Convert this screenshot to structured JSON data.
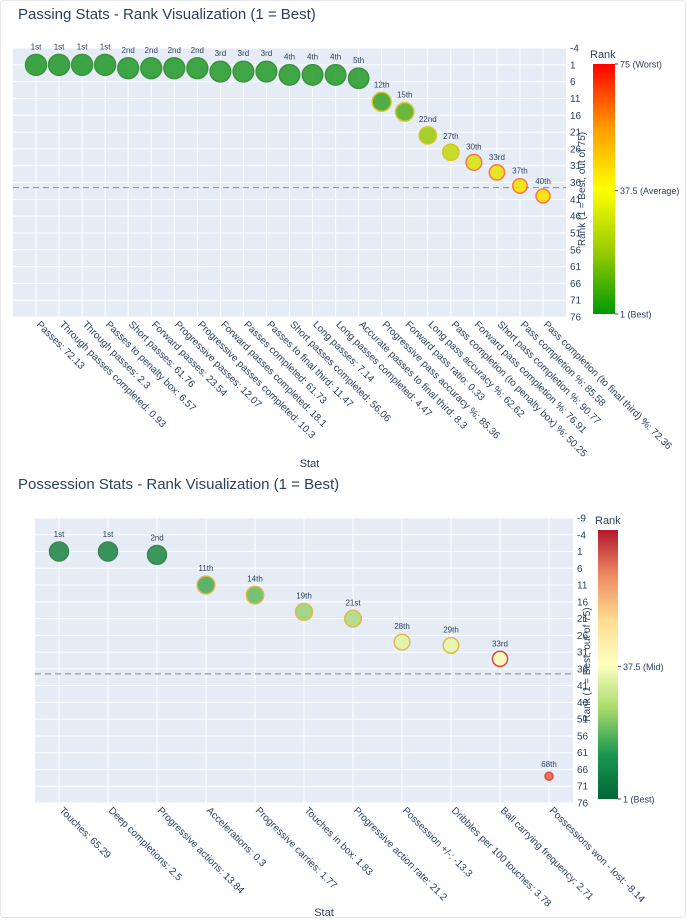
{
  "chart_data": [
    {
      "type": "scatter",
      "title": "Passing Stats - Rank Visualization (1 = Best)",
      "xlabel": "Stat",
      "ylabel": "",
      "ylim": [
        76,
        -4
      ],
      "y_ticks": [
        -4,
        1,
        6,
        11,
        16,
        21,
        26,
        31,
        36,
        41,
        46,
        51,
        56,
        61,
        66,
        71,
        76
      ],
      "average_line": 37.5,
      "grid": true,
      "colorbar": {
        "title": "Rank",
        "axis_title": "Rank (1 = Best, out of 75)",
        "tick_labels": [
          "75 (Worst)",
          "37.5 (Average)",
          "1 (Best)"
        ],
        "tick_values": [
          75,
          37.5,
          1
        ],
        "colors": [
          "#ff0000",
          "#ff9900",
          "#ffff00",
          "#99cc00",
          "#009900"
        ]
      },
      "categories": [
        "Passes: 72.13",
        "Through passes completed: 0.93",
        "Through passes: 2.3",
        "Passes to penalty box: 6.57",
        "Short passes: 61.76",
        "Forward passes: 23.54",
        "Progressive passes: 12.07",
        "Progressive passes completed: 10.3",
        "Forward passes completed: 18.1",
        "Passes completed: 61.73",
        "Passes to final third: 11.47",
        "Short passes completed: 56.06",
        "Long passes: 7.14",
        "Long passes completed: 4.47",
        "Accurate passes to final third: 8.3",
        "Progressive pass accuracy %: 85.36",
        "Forward pass ratio: 0.33",
        "Long pass accuracy %: 62.62",
        "Pass completion (to penalty box) %: 50.25",
        "Forward pass completion %: 76.91",
        "Short pass completion %: 90.77",
        "Pass completion %: 85.58",
        "Pass completion (to final third) %: 72.36"
      ],
      "values": [
        1,
        1,
        1,
        1,
        2,
        2,
        2,
        2,
        3,
        3,
        3,
        4,
        4,
        4,
        5,
        12,
        15,
        22,
        27,
        30,
        33,
        37,
        40
      ],
      "point_labels": [
        "1st",
        "1st",
        "1st",
        "1st",
        "2nd",
        "2nd",
        "2nd",
        "2nd",
        "3rd",
        "3rd",
        "3rd",
        "4th",
        "4th",
        "4th",
        "5th",
        "12th",
        "15th",
        "22nd",
        "27th",
        "30th",
        "33rd",
        "37th",
        "40th"
      ]
    },
    {
      "type": "scatter",
      "title": "Possession Stats - Rank Visualization (1 = Best)",
      "xlabel": "Stat",
      "ylabel": "",
      "ylim": [
        76,
        -9
      ],
      "y_ticks": [
        -9,
        -4,
        1,
        6,
        11,
        16,
        21,
        26,
        31,
        36,
        41,
        46,
        51,
        56,
        61,
        66,
        71,
        76
      ],
      "average_line": 37.5,
      "grid": true,
      "colorbar": {
        "title": "Rank",
        "axis_title": "Rank (1 = Best, out of 75)",
        "tick_labels": [
          "37.5 (Mid)",
          "1 (Best)"
        ],
        "tick_values": [
          37.5,
          1
        ],
        "colors": [
          "#b2182b",
          "#ef8a62",
          "#fddb8f",
          "#ffffbf",
          "#a6d96a",
          "#1a9850",
          "#006837"
        ]
      },
      "categories": [
        "Touches: 65.29",
        "Deep completions: 2.5",
        "Progressive actions: 13.84",
        "Accelerations: 0.3",
        "Progressive carries: 1.77",
        "Touches in box: 1.83",
        "Progressive action rate: 21.2",
        "Possession +/-: -13.3",
        "Dribbles per 100 touches: 3.78",
        "Ball carrying frequency: 2.71",
        "Possessions won - lost: -8.14"
      ],
      "values": [
        1,
        1,
        2,
        11,
        14,
        19,
        21,
        28,
        29,
        33,
        68
      ],
      "point_labels": [
        "1st",
        "1st",
        "2nd",
        "11th",
        "14th",
        "19th",
        "21st",
        "28th",
        "29th",
        "33rd",
        "68th"
      ]
    }
  ]
}
